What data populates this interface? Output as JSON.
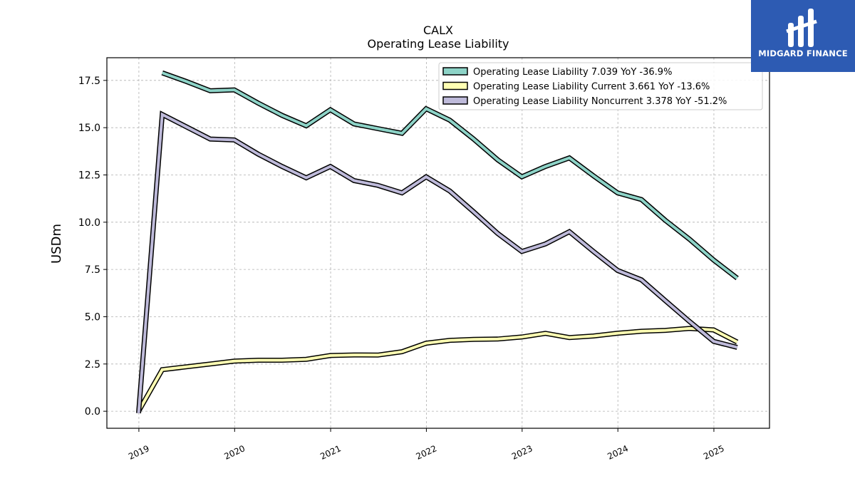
{
  "chart_data": {
    "type": "line",
    "title": "CALX",
    "subtitle": "Operating Lease Liability",
    "xlabel": "",
    "ylabel": "USDm",
    "xlim": [
      "2018-09-01",
      "2025-08-01"
    ],
    "ylim": [
      -0.9,
      18.7
    ],
    "yticks": [
      0.0,
      2.5,
      5.0,
      7.5,
      10.0,
      12.5,
      15.0,
      17.5
    ],
    "ytick_labels": [
      "0.0",
      "2.5",
      "5.0",
      "7.5",
      "10.0",
      "12.5",
      "15.0",
      "17.5"
    ],
    "xticks": [
      "2019-01-01",
      "2020-01-01",
      "2021-01-01",
      "2022-01-01",
      "2023-01-01",
      "2024-01-01",
      "2025-01-01"
    ],
    "xtick_labels": [
      "2019",
      "2020",
      "2021",
      "2022",
      "2023",
      "2024",
      "2025"
    ],
    "grid": true,
    "legend_position": "top-right",
    "series": [
      {
        "name": "Operating Lease Liability",
        "legend": "Operating Lease Liability  7.039 YoY -36.9%",
        "color": "#8dd3c7",
        "points": [
          [
            "2019-03-31",
            17.9
          ],
          [
            "2019-06-30",
            17.45
          ],
          [
            "2019-09-30",
            16.95
          ],
          [
            "2019-12-31",
            17.0
          ],
          [
            "2020-03-31",
            16.3
          ],
          [
            "2020-06-30",
            15.65
          ],
          [
            "2020-09-30",
            15.1
          ],
          [
            "2020-12-31",
            15.95
          ],
          [
            "2021-03-31",
            15.2
          ],
          [
            "2021-06-30",
            14.95
          ],
          [
            "2021-09-30",
            14.7
          ],
          [
            "2021-12-31",
            16.0
          ],
          [
            "2022-03-31",
            15.4
          ],
          [
            "2022-06-30",
            14.4
          ],
          [
            "2022-09-30",
            13.3
          ],
          [
            "2022-12-31",
            12.4
          ],
          [
            "2023-03-31",
            12.95
          ],
          [
            "2023-06-30",
            13.4
          ],
          [
            "2023-09-30",
            12.45
          ],
          [
            "2023-12-31",
            11.55
          ],
          [
            "2024-03-31",
            11.2
          ],
          [
            "2024-06-30",
            10.1
          ],
          [
            "2024-09-30",
            9.1
          ],
          [
            "2024-12-31",
            8.0
          ],
          [
            "2025-03-31",
            7.039
          ]
        ]
      },
      {
        "name": "Operating Lease Liability Current",
        "legend": "Operating Lease Liability Current  3.661 YoY -13.6%",
        "color": "#ffffb3",
        "points": [
          [
            "2018-12-31",
            0.0
          ],
          [
            "2019-03-31",
            2.2
          ],
          [
            "2019-06-30",
            2.35
          ],
          [
            "2019-09-30",
            2.5
          ],
          [
            "2019-12-31",
            2.65
          ],
          [
            "2020-03-31",
            2.7
          ],
          [
            "2020-06-30",
            2.7
          ],
          [
            "2020-09-30",
            2.75
          ],
          [
            "2020-12-31",
            2.95
          ],
          [
            "2021-03-31",
            2.98
          ],
          [
            "2021-06-30",
            2.97
          ],
          [
            "2021-09-30",
            3.15
          ],
          [
            "2021-12-31",
            3.6
          ],
          [
            "2022-03-31",
            3.75
          ],
          [
            "2022-06-30",
            3.8
          ],
          [
            "2022-09-30",
            3.82
          ],
          [
            "2022-12-31",
            3.93
          ],
          [
            "2023-03-31",
            4.12
          ],
          [
            "2023-06-30",
            3.9
          ],
          [
            "2023-09-30",
            3.98
          ],
          [
            "2023-12-31",
            4.13
          ],
          [
            "2024-03-31",
            4.23
          ],
          [
            "2024-06-30",
            4.28
          ],
          [
            "2024-09-30",
            4.38
          ],
          [
            "2024-12-31",
            4.3
          ],
          [
            "2025-03-31",
            3.661
          ]
        ]
      },
      {
        "name": "Operating Lease Liability Noncurrent",
        "legend": "Operating Lease Liability Noncurrent  3.378 YoY -51.2%",
        "color": "#bebada",
        "points": [
          [
            "2018-12-31",
            -0.1
          ],
          [
            "2019-03-31",
            15.7
          ],
          [
            "2019-06-30",
            15.05
          ],
          [
            "2019-09-30",
            14.4
          ],
          [
            "2019-12-31",
            14.35
          ],
          [
            "2020-03-31",
            13.6
          ],
          [
            "2020-06-30",
            12.95
          ],
          [
            "2020-09-30",
            12.35
          ],
          [
            "2020-12-31",
            12.95
          ],
          [
            "2021-03-31",
            12.2
          ],
          [
            "2021-06-30",
            11.95
          ],
          [
            "2021-09-30",
            11.55
          ],
          [
            "2021-12-31",
            12.4
          ],
          [
            "2022-03-31",
            11.65
          ],
          [
            "2022-06-30",
            10.55
          ],
          [
            "2022-09-30",
            9.4
          ],
          [
            "2022-12-31",
            8.45
          ],
          [
            "2023-03-31",
            8.85
          ],
          [
            "2023-06-30",
            9.5
          ],
          [
            "2023-09-30",
            8.45
          ],
          [
            "2023-12-31",
            7.45
          ],
          [
            "2024-03-31",
            6.95
          ],
          [
            "2024-06-30",
            5.85
          ],
          [
            "2024-09-30",
            4.75
          ],
          [
            "2024-12-31",
            3.7
          ],
          [
            "2025-03-31",
            3.378
          ]
        ]
      }
    ]
  },
  "logo": {
    "text": "MIDGARD FINANCE",
    "color": "#2d5bb3"
  }
}
